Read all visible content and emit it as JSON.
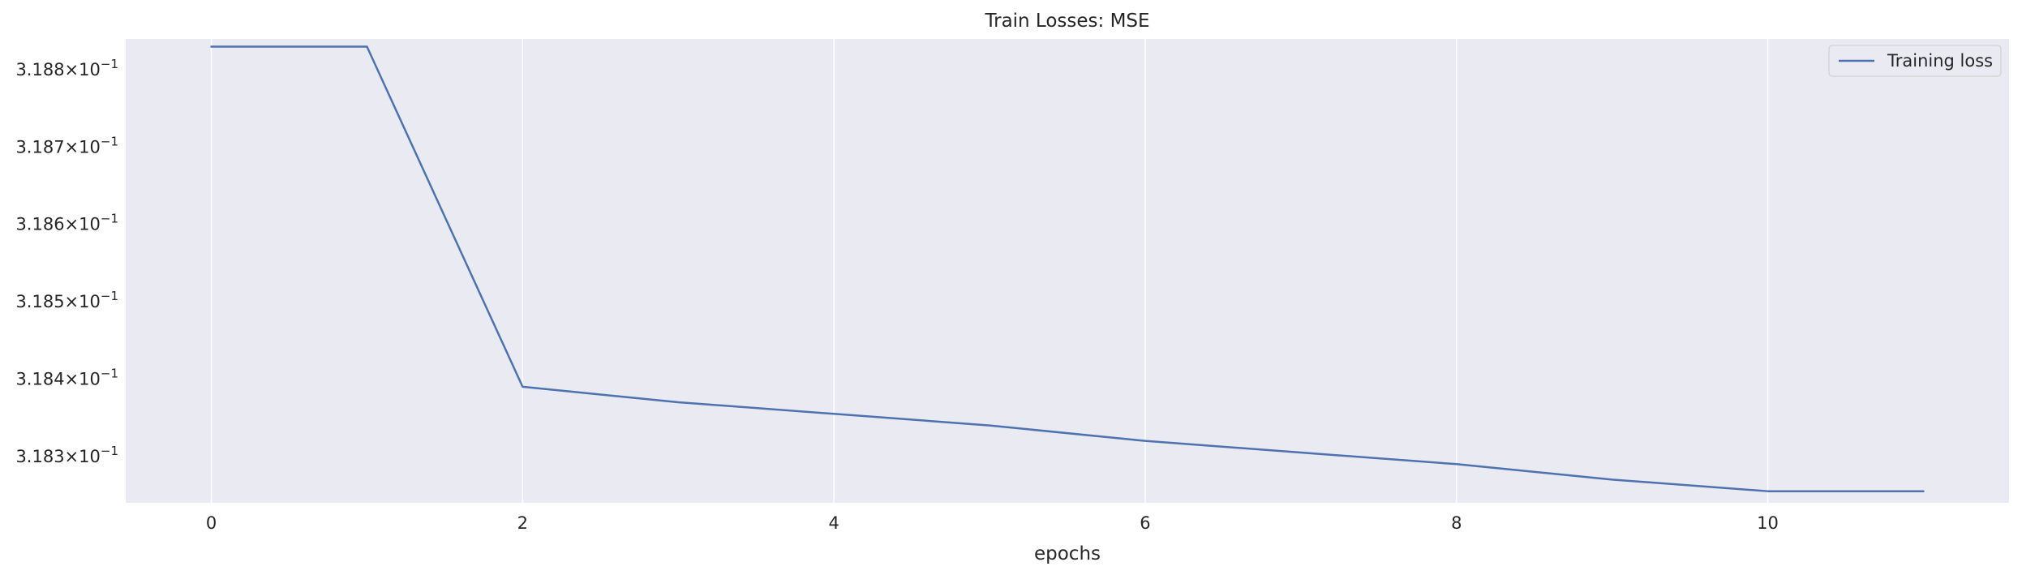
{
  "chart_data": {
    "type": "line",
    "title": "Train Losses:  MSE",
    "xlabel": "epochs",
    "ylabel": "",
    "yscale": "log",
    "grid": "vertical",
    "legend_position": "top-right",
    "xlim": [
      -0.55,
      11.55
    ],
    "ylim": [
      0.31824,
      0.31884
    ],
    "x_ticks": [
      0,
      2,
      4,
      6,
      8,
      10
    ],
    "y_ticks": [
      {
        "value": 0.3183,
        "mantissa": "3.183",
        "sign": "×",
        "base": "10",
        "exponent": "−1"
      },
      {
        "value": 0.3184,
        "mantissa": "3.184",
        "sign": "×",
        "base": "10",
        "exponent": "−1"
      },
      {
        "value": 0.3185,
        "mantissa": "3.185",
        "sign": "×",
        "base": "10",
        "exponent": "−1"
      },
      {
        "value": 0.3186,
        "mantissa": "3.186",
        "sign": "×",
        "base": "10",
        "exponent": "−1"
      },
      {
        "value": 0.3187,
        "mantissa": "3.187",
        "sign": "×",
        "base": "10",
        "exponent": "−1"
      },
      {
        "value": 0.3188,
        "mantissa": "3.188",
        "sign": "×",
        "base": "10",
        "exponent": "−1"
      }
    ],
    "series": [
      {
        "name": "Training loss",
        "color": "#4c72b0",
        "x": [
          0,
          1,
          2,
          3,
          4,
          5,
          6,
          7,
          8,
          9,
          10,
          11
        ],
        "y": [
          0.31883,
          0.31883,
          0.31839,
          0.31837,
          0.318355,
          0.31834,
          0.31832,
          0.318305,
          0.31829,
          0.31827,
          0.318255,
          0.318255
        ]
      }
    ],
    "colors": {
      "plot_background": "#eaeaf2",
      "grid": "#ffffff",
      "text": "#262626"
    }
  }
}
